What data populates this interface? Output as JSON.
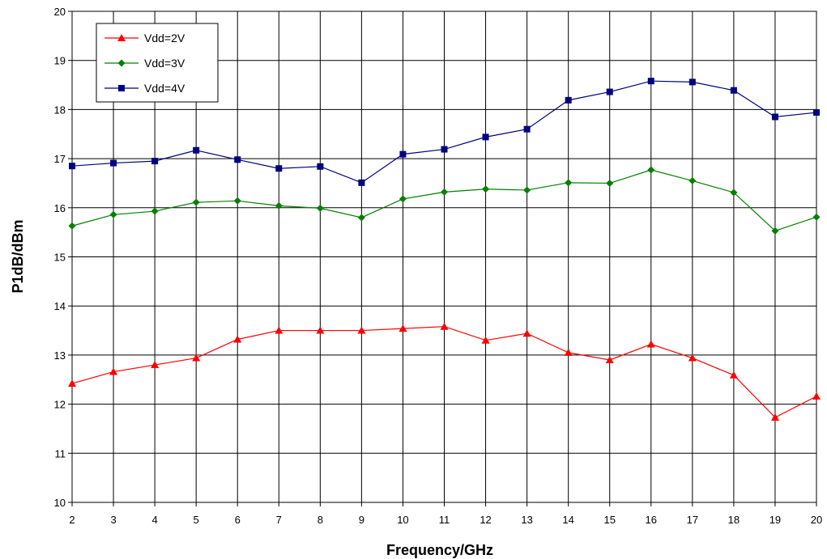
{
  "chart_data": {
    "type": "line",
    "xlabel": "Frequency/GHz",
    "ylabel": "P1dB/dBm",
    "xlim": [
      2,
      20
    ],
    "ylim": [
      10,
      20
    ],
    "x_ticks": [
      2,
      3,
      4,
      5,
      6,
      7,
      8,
      9,
      10,
      11,
      12,
      13,
      14,
      15,
      16,
      17,
      18,
      19,
      20
    ],
    "y_ticks": [
      10,
      11,
      12,
      13,
      14,
      15,
      16,
      17,
      18,
      19,
      20
    ],
    "grid": true,
    "legend_position": "top-left",
    "x": [
      2,
      3,
      4,
      5,
      6,
      7,
      8,
      9,
      10,
      11,
      12,
      13,
      14,
      15,
      16,
      17,
      18,
      19,
      20
    ],
    "series": [
      {
        "name": "Vdd=2V",
        "color": "#ff0000",
        "marker": "triangle",
        "values": [
          12.42,
          12.66,
          12.8,
          12.94,
          13.32,
          13.5,
          13.5,
          13.5,
          13.54,
          13.58,
          13.3,
          13.44,
          13.05,
          12.9,
          13.22,
          12.94,
          12.59,
          11.73,
          12.16
        ]
      },
      {
        "name": "Vdd=3V",
        "color": "#008000",
        "marker": "diamond",
        "values": [
          15.63,
          15.86,
          15.93,
          16.11,
          16.14,
          16.04,
          15.99,
          15.8,
          16.18,
          16.32,
          16.38,
          16.36,
          16.51,
          16.5,
          16.77,
          16.55,
          16.31,
          15.53,
          15.81
        ]
      },
      {
        "name": "Vdd=4V",
        "color": "#000080",
        "marker": "square",
        "values": [
          16.85,
          16.91,
          16.95,
          17.17,
          16.98,
          16.8,
          16.84,
          16.51,
          17.09,
          17.19,
          17.44,
          17.6,
          18.19,
          18.36,
          18.58,
          18.56,
          18.39,
          17.85,
          17.94
        ]
      }
    ]
  }
}
